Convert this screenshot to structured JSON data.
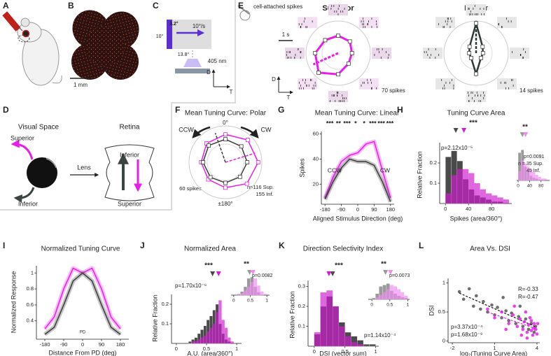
{
  "panels": {
    "A": {
      "label": "A"
    },
    "B": {
      "label": "B",
      "scale_bar": "1 mm"
    },
    "C": {
      "label": "C",
      "bar_width": "3.2°",
      "speed": "10°/s",
      "bar_height": "10°",
      "distance": "13.8°",
      "wavelength": "405 nm",
      "axis_dorsal": "D",
      "axis_temporal": "T"
    },
    "D": {
      "label": "D",
      "visual_space": "Visual Space",
      "retina": "Retina",
      "superior_world": "Superior",
      "lens": "Lens",
      "inferior_world": "Inferior",
      "inferior_retina": "Inferior",
      "superior_retina": "Superior"
    },
    "E": {
      "label": "E",
      "type": "polar",
      "recording": "cell-attached spikes",
      "time_scale": "1 s",
      "axis_dorsal": "D",
      "axis_temporal": "T",
      "cells": [
        {
          "name": "Superior",
          "color": "#e81ee8",
          "scale": {
            "value": 70,
            "label": "70 spikes"
          },
          "values": [
            38,
            36,
            30,
            32,
            46,
            60,
            50,
            40
          ]
        },
        {
          "name": "Inferior",
          "color": "#2f3a36",
          "scale": {
            "value": 14,
            "label": "14 spikes"
          },
          "values": [
            13,
            4,
            3,
            3,
            9,
            3,
            3,
            4
          ]
        }
      ]
    },
    "F": {
      "label": "F",
      "type": "polar",
      "title": "Mean Tuning Curve: Polar",
      "ccw": "CCW",
      "cw": "CW",
      "top": "0°",
      "bottom": "±180°",
      "scale": {
        "value": 60,
        "label": "60 spikes"
      },
      "n_sup": "n=116 Sup.",
      "n_inf": "155 Inf.",
      "series": [
        {
          "color": "#e81ee8",
          "values": [
            46,
            52,
            54,
            50,
            42,
            40,
            40,
            44
          ]
        },
        {
          "color": "#3c3c3c",
          "values": [
            38,
            37,
            36,
            34,
            34,
            35,
            37,
            39
          ]
        }
      ]
    },
    "G": {
      "label": "G",
      "type": "line",
      "title": "Mean Tuning Curve: Linear",
      "stars": [
        "***",
        "**",
        "***",
        "*",
        "*",
        "***",
        "***",
        "***"
      ],
      "ccw": "CCW",
      "cw": "CW",
      "ylabel": "Spikes",
      "xlabel": "Aligned Stimulus Direction (deg)",
      "x": [
        -180,
        -135,
        -90,
        -45,
        0,
        45,
        90,
        135,
        180
      ],
      "series": [
        {
          "color": "#e81ee8",
          "values": [
            9,
            26,
            38,
            43,
            45,
            52,
            54,
            31,
            9
          ]
        },
        {
          "color": "#3c3c3c",
          "values": [
            8,
            22,
            33,
            40,
            38,
            38,
            35,
            22,
            6
          ]
        }
      ],
      "xlim": [
        -200,
        200
      ],
      "ylim": [
        4,
        62
      ],
      "xticks": [
        -180,
        -90,
        0,
        90,
        180
      ],
      "yticks": [
        20,
        40,
        60
      ]
    },
    "H": {
      "label": "H",
      "type": "histogram",
      "title": "Tuning Curve Area",
      "stars": "***",
      "p": "p=2.12x10⁻⁵",
      "ylabel": "Relative Fraction",
      "xlabel": "Spikes (area/360°)",
      "bins": [
        0,
        10,
        20,
        30,
        40,
        50,
        60,
        70,
        80,
        90,
        100,
        110
      ],
      "series": [
        {
          "color": "#4a4a4a",
          "median": 18,
          "values": [
            0.23,
            0.26,
            0.21,
            0.12,
            0.07,
            0.04,
            0.03,
            0.02,
            0.01,
            0.01,
            0
          ]
        },
        {
          "color": "#d21ed2",
          "median": 32,
          "values": [
            0.05,
            0.14,
            0.17,
            0.17,
            0.15,
            0.1,
            0.07,
            0.05,
            0.04,
            0.03,
            0.02
          ]
        }
      ],
      "xlim": [
        -10,
        115
      ],
      "ylim": [
        0,
        0.3
      ],
      "xticks": [
        0,
        40,
        80
      ],
      "yticks": [
        0.1,
        0.2
      ],
      "inset": {
        "type": "histogram",
        "stars": "**",
        "p": "p=0.0091",
        "n_sup": "n = 35 Sup.",
        "n_inf": "45 Inf.",
        "bins": [
          0,
          10,
          20,
          30,
          40,
          50,
          60,
          70,
          80,
          90,
          100
        ],
        "series": [
          {
            "color": "#9a9a9a",
            "median": 15,
            "values": [
              0.3,
              0.33,
              0.15,
              0.1,
              0.05,
              0.03,
              0.02,
              0.01,
              0.01,
              0
            ]
          },
          {
            "color": "#f08cf0",
            "median": 26,
            "values": [
              0.1,
              0.22,
              0.18,
              0.15,
              0.12,
              0.09,
              0.06,
              0.04,
              0.02,
              0.02
            ]
          }
        ],
        "xlim": [
          -5,
          110
        ],
        "ylim": [
          0,
          0.4
        ],
        "xticks": [
          0,
          40,
          80
        ]
      }
    },
    "I": {
      "label": "I",
      "type": "line",
      "title": "Normalized Tuning Curve",
      "ylabel": "Normalized Response",
      "xlabel": "Distance From PD (deg)",
      "pd": "PD",
      "x": [
        -180,
        -135,
        -90,
        -45,
        0,
        45,
        90,
        135,
        180
      ],
      "series": [
        {
          "color": "#e81ee8",
          "values": [
            0.3,
            0.45,
            0.8,
            1.06,
            1.0,
            1.06,
            0.8,
            0.45,
            0.3
          ]
        },
        {
          "color": "#3c3c3c",
          "values": [
            0.23,
            0.32,
            0.6,
            0.9,
            1.0,
            0.9,
            0.6,
            0.32,
            0.23
          ]
        }
      ],
      "xlim": [
        -220,
        220
      ],
      "ylim": [
        0.17,
        1.09
      ],
      "xticks": [
        -180,
        -90,
        0,
        90,
        180
      ],
      "yticks": [
        0.4,
        0.6,
        0.8,
        1
      ]
    },
    "J": {
      "label": "J",
      "type": "histogram",
      "title": "Normalized Area",
      "stars": "***",
      "p": "p=1.70x10⁻⁶",
      "ylabel": "Relative Fraction",
      "xlabel": "A.U. (area/360°)",
      "bins": [
        0.2,
        0.25,
        0.3,
        0.35,
        0.4,
        0.45,
        0.5,
        0.55,
        0.6,
        0.65,
        0.7,
        0.75,
        0.8,
        0.85,
        0.9,
        0.95
      ],
      "series": [
        {
          "color": "#4a4a4a",
          "median": 0.6,
          "values": [
            0.01,
            0.02,
            0.03,
            0.05,
            0.07,
            0.09,
            0.12,
            0.14,
            0.17,
            0.2,
            0.1,
            0.05,
            0.02,
            0.01,
            0
          ]
        },
        {
          "color": "#d21ed2",
          "median": 0.7,
          "values": [
            0,
            0.01,
            0.01,
            0.02,
            0.03,
            0.04,
            0.06,
            0.08,
            0.1,
            0.16,
            0.22,
            0.12,
            0.08,
            0.03,
            0.01
          ]
        }
      ],
      "xlim": [
        -0.08,
        1.08
      ],
      "ylim": [
        0,
        0.25
      ],
      "xticks": [
        0,
        0.5,
        1
      ],
      "yticks": [
        0.1,
        0.2
      ],
      "inset": {
        "type": "histogram",
        "stars": "**",
        "p": "p=0.0082",
        "bins": [
          0,
          0.1,
          0.2,
          0.3,
          0.4,
          0.5,
          0.6,
          0.7,
          0.8,
          0.9,
          1
        ],
        "series": [
          {
            "color": "#9a9a9a",
            "median": 0.48,
            "values": [
              0,
              0.02,
              0.06,
              0.14,
              0.28,
              0.3,
              0.14,
              0.05,
              0.01,
              0
            ]
          },
          {
            "color": "#f08cf0",
            "median": 0.58,
            "values": [
              0,
              0.01,
              0.03,
              0.08,
              0.14,
              0.22,
              0.28,
              0.16,
              0.06,
              0.02
            ]
          }
        ],
        "xlim": [
          -0.08,
          1.08
        ],
        "ylim": [
          0,
          0.35
        ],
        "xticks": [
          0,
          0.5,
          1
        ]
      }
    },
    "K": {
      "label": "K",
      "type": "histogram",
      "title": "Direction Selectivity Index",
      "stars": "***",
      "p": "p=1.14x10⁻⁴",
      "ylabel": "Relative Fraction",
      "xlabel": "DSI (vector sum)",
      "bins": [
        0,
        0.1,
        0.2,
        0.3,
        0.4,
        0.5,
        0.6,
        0.7,
        0.8,
        0.9,
        1
      ],
      "series": [
        {
          "color": "#4a4a4a",
          "median": 0.3,
          "values": [
            0.06,
            0.2,
            0.25,
            0.2,
            0.12,
            0.07,
            0.05,
            0.03,
            0.01,
            0.01
          ]
        },
        {
          "color": "#d21ed2",
          "median": 0.24,
          "values": [
            0.07,
            0.27,
            0.28,
            0.2,
            0.1,
            0.05,
            0.02,
            0.01,
            0,
            0
          ]
        }
      ],
      "xlim": [
        -0.1,
        1.05
      ],
      "ylim": [
        0,
        0.33
      ],
      "xticks": [
        0,
        0.5,
        1
      ],
      "yticks": [
        0.1,
        0.2,
        0.3
      ],
      "inset": {
        "type": "histogram",
        "stars": "**",
        "p": "p=0.0073",
        "bins": [
          0,
          0.1,
          0.2,
          0.3,
          0.4,
          0.5,
          0.6,
          0.7,
          0.8,
          0.9,
          1
        ],
        "series": [
          {
            "color": "#9a9a9a",
            "median": 0.38,
            "values": [
              0.02,
              0.08,
              0.18,
              0.2,
              0.22,
              0.12,
              0.08,
              0.05,
              0.03,
              0.02
            ]
          },
          {
            "color": "#f08cf0",
            "median": 0.52,
            "values": [
              0,
              0.03,
              0.06,
              0.1,
              0.14,
              0.2,
              0.18,
              0.14,
              0.1,
              0.05
            ]
          }
        ],
        "xlim": [
          -0.1,
          1.05
        ],
        "ylim": [
          0,
          0.35
        ],
        "xticks": [
          0,
          0.5,
          1
        ]
      }
    },
    "L": {
      "label": "L",
      "type": "scatter",
      "title": "Area Vs. DSI",
      "ylabel": "DSI",
      "xlabel": "log₂(Tuning Curve Area)",
      "series": [
        {
          "color": "#555555",
          "r": "R=-0.47",
          "p": "p=1.68x10⁻⁹",
          "x": [
            -1.5,
            -1.2,
            -0.8,
            -0.5,
            -0.3,
            0,
            0.2,
            0.5,
            0.8,
            1.0,
            1.2,
            1.5,
            1.8,
            2.0,
            2.2,
            2.5,
            2.7,
            3.0,
            3.2,
            3.4,
            3.6,
            3.8,
            3.9,
            2.8,
            1.6
          ],
          "y": [
            0.85,
            0.72,
            0.9,
            0.6,
            0.78,
            0.55,
            0.68,
            0.5,
            0.62,
            0.45,
            0.58,
            0.4,
            0.52,
            0.35,
            0.48,
            0.3,
            0.42,
            0.25,
            0.38,
            0.2,
            0.3,
            0.15,
            0.25,
            0.6,
            0.75
          ]
        },
        {
          "color": "#e81ee8",
          "r": "R=-0.33",
          "p": "p=3.37x10⁻⁴",
          "x": [
            0.5,
            1.0,
            1.5,
            2.0,
            2.3,
            2.6,
            2.8,
            3.0,
            3.1,
            3.3,
            3.4,
            3.5,
            3.6,
            3.7,
            3.8,
            3.9,
            4.0,
            3.2,
            2.9,
            3.6,
            2.4,
            3.3,
            3.75,
            4.05,
            1.8
          ],
          "y": [
            0.55,
            0.4,
            0.5,
            0.3,
            0.45,
            0.25,
            0.38,
            0.2,
            0.33,
            0.15,
            0.28,
            0.4,
            0.18,
            0.1,
            0.3,
            0.2,
            0.12,
            0.5,
            0.1,
            0.35,
            0.6,
            0.05,
            0.22,
            0.3,
            0.2
          ]
        }
      ],
      "xlim": [
        -2.3,
        4.2
      ],
      "ylim": [
        -0.03,
        1.08
      ],
      "xticks": [
        -2,
        1,
        4
      ],
      "yticks": [
        0,
        0.5,
        1
      ]
    }
  }
}
